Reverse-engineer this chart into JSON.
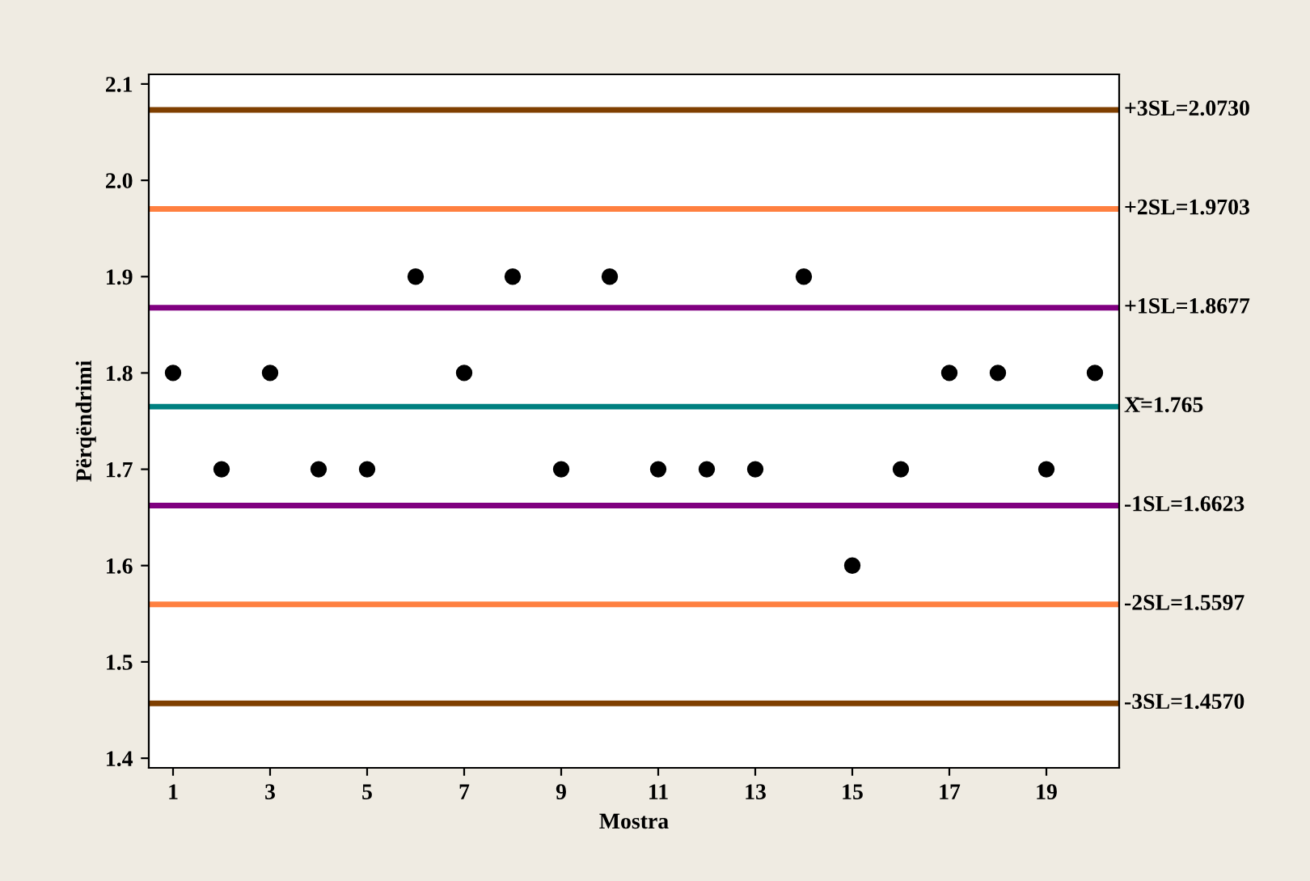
{
  "chart_data": {
    "type": "scatter",
    "xlabel": "Mostra",
    "ylabel": "Përqëndrimi",
    "x": [
      1,
      2,
      3,
      4,
      5,
      6,
      7,
      8,
      9,
      10,
      11,
      12,
      13,
      14,
      15,
      16,
      17,
      18,
      19,
      20
    ],
    "series": [
      {
        "color": "#000000",
        "values": [
          1.8,
          1.7,
          1.8,
          1.7,
          1.7,
          1.9,
          1.8,
          1.9,
          1.7,
          1.9,
          1.7,
          1.7,
          1.7,
          1.9,
          1.6,
          1.7,
          1.8,
          1.8,
          1.7,
          1.8
        ]
      }
    ],
    "marker": "circle",
    "xlim": [
      0.5,
      20.5
    ],
    "xticks": [
      1,
      3,
      5,
      7,
      9,
      11,
      13,
      15,
      17,
      19
    ],
    "ylim": [
      1.39,
      2.11
    ],
    "yticks": [
      1.4,
      1.5,
      1.6,
      1.7,
      1.8,
      1.9,
      {
        "value": 2.0,
        "label": "2.0"
      },
      2.1
    ],
    "grid": false,
    "legend": false,
    "ref_lines": [
      {
        "axis": "y",
        "value": 2.073,
        "label": "+3SL=2.0730",
        "color": "#7f3f00"
      },
      {
        "axis": "y",
        "value": 1.9703,
        "label": "+2SL=1.9703",
        "color": "#ff8040"
      },
      {
        "axis": "y",
        "value": 1.8677,
        "label": "+1SL=1.8677",
        "color": "#800080"
      },
      {
        "axis": "y",
        "value": 1.765,
        "label": "X̄=1.765",
        "color": "#008080"
      },
      {
        "axis": "y",
        "value": 1.6623,
        "label": "-1SL=1.6623",
        "color": "#800080"
      },
      {
        "axis": "y",
        "value": 1.5597,
        "label": "-2SL=1.5597",
        "color": "#ff8040"
      },
      {
        "axis": "y",
        "value": 1.457,
        "label": "-3SL=1.4570",
        "color": "#7f3f00"
      }
    ]
  }
}
